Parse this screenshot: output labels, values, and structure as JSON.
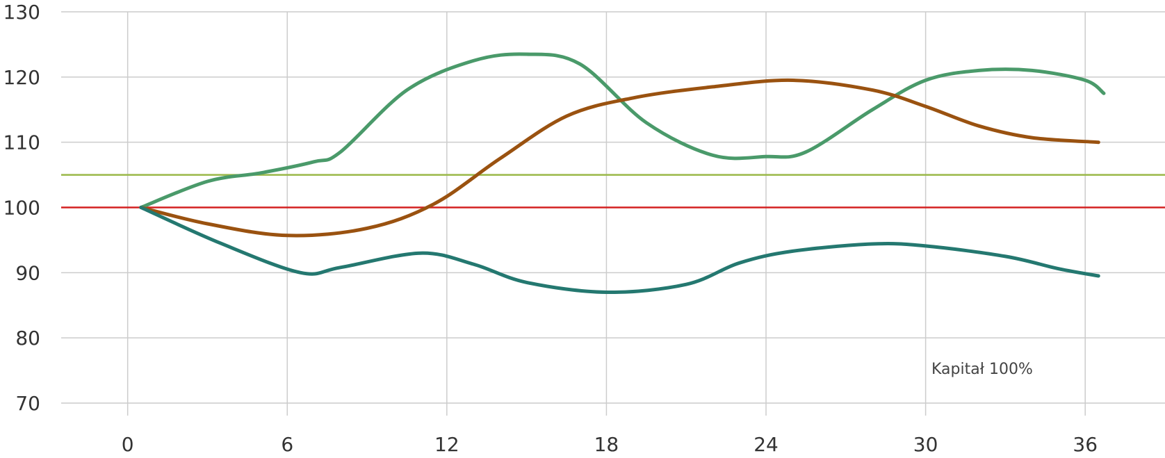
{
  "chart_data": {
    "type": "line",
    "title": "",
    "xlabel": "",
    "ylabel": "",
    "xlim": [
      -2.5,
      39
    ],
    "ylim": [
      70,
      130
    ],
    "x_ticks": [
      0,
      6,
      12,
      18,
      24,
      30,
      36
    ],
    "y_ticks": [
      70,
      80,
      90,
      100,
      110,
      120,
      130
    ],
    "grid": true,
    "annotation": "Kapitał 100%",
    "reference_lines": [
      {
        "y": 100,
        "color": "#d42020"
      },
      {
        "y": 105,
        "color": "#9ab848"
      }
    ],
    "series": [
      {
        "color": "#4a9a6a",
        "points": [
          [
            0.5,
            100
          ],
          [
            3,
            104
          ],
          [
            5,
            105.3
          ],
          [
            7,
            107
          ],
          [
            8,
            108.5
          ],
          [
            10.5,
            118
          ],
          [
            13,
            122.5
          ],
          [
            15,
            123.5
          ],
          [
            17,
            122
          ],
          [
            19.5,
            113
          ],
          [
            22,
            108
          ],
          [
            24,
            107.8
          ],
          [
            25.5,
            108.5
          ],
          [
            28,
            115
          ],
          [
            30,
            119.5
          ],
          [
            32,
            121
          ],
          [
            34,
            121
          ],
          [
            36,
            119.5
          ],
          [
            36.7,
            117.5
          ]
        ]
      },
      {
        "color": "#9a5210",
        "points": [
          [
            0.5,
            100
          ],
          [
            3,
            97.5
          ],
          [
            6,
            95.7
          ],
          [
            9,
            96.8
          ],
          [
            11.5,
            100.5
          ],
          [
            14,
            107.5
          ],
          [
            16.5,
            114
          ],
          [
            19,
            116.8
          ],
          [
            22,
            118.5
          ],
          [
            25,
            119.5
          ],
          [
            28,
            118
          ],
          [
            30,
            115.5
          ],
          [
            32,
            112.5
          ],
          [
            34,
            110.7
          ],
          [
            36.5,
            110
          ]
        ]
      },
      {
        "color": "#247870",
        "points": [
          [
            0.5,
            100
          ],
          [
            3.5,
            94.5
          ],
          [
            6.5,
            90
          ],
          [
            8,
            90.8
          ],
          [
            11,
            93
          ],
          [
            13,
            91.3
          ],
          [
            15,
            88.5
          ],
          [
            18,
            87
          ],
          [
            21,
            88.2
          ],
          [
            23,
            91.5
          ],
          [
            25,
            93.3
          ],
          [
            28,
            94.4
          ],
          [
            30,
            94.1
          ],
          [
            33,
            92.5
          ],
          [
            35,
            90.6
          ],
          [
            36.5,
            89.5
          ]
        ]
      }
    ]
  }
}
